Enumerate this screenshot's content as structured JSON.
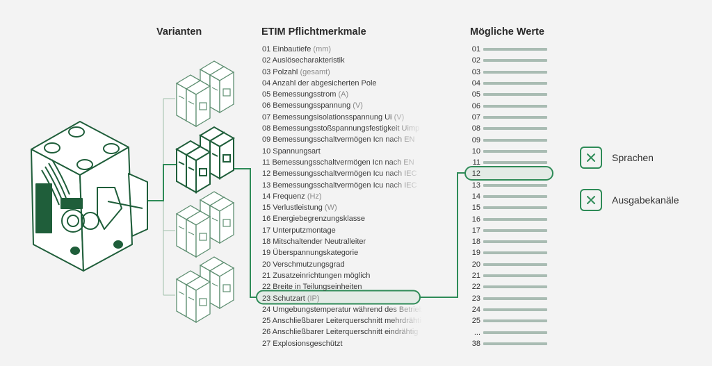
{
  "headings": {
    "variants": "Varianten",
    "etim": "ETIM Pflichtmerkmale",
    "values": "Mögliche Werte"
  },
  "etim_features": [
    {
      "label": "01 Einbautiefe",
      "unit": "(mm)"
    },
    {
      "label": "02 Auslösecharakteristik",
      "unit": ""
    },
    {
      "label": "03 Polzahl",
      "unit": "(gesamt)"
    },
    {
      "label": "04 Anzahl der abgesicherten Pole",
      "unit": ""
    },
    {
      "label": "05 Bemessungsstrom",
      "unit": "(A)"
    },
    {
      "label": "06 Bemessungsspannung",
      "unit": "(V)"
    },
    {
      "label": "07 Bemessungsisolationsspannung Ui",
      "unit": "(V)"
    },
    {
      "label": "08 Bemessungsstoßspannungsfestigkeit Uimp",
      "unit": ""
    },
    {
      "label": "09 Bemessungsschaltvermögen Icn nach EN",
      "unit": ""
    },
    {
      "label": "10 Spannungsart",
      "unit": ""
    },
    {
      "label": "11 Bemessungsschaltvermögen Icn nach EN",
      "unit": ""
    },
    {
      "label": "12 Bemessungsschaltvermögen Icu nach IEC",
      "unit": ""
    },
    {
      "label": "13 Bemessungsschaltvermögen Icu nach IEC",
      "unit": ""
    },
    {
      "label": "14 Frequenz",
      "unit": "(Hz)"
    },
    {
      "label": "15 Verlustleistung",
      "unit": "(W)"
    },
    {
      "label": "16 Energiebegrenzungsklasse",
      "unit": ""
    },
    {
      "label": "17 Unterputzmontage",
      "unit": ""
    },
    {
      "label": "18 Mitschaltender Neutralleiter",
      "unit": ""
    },
    {
      "label": "19 Überspannungskategorie",
      "unit": ""
    },
    {
      "label": "20 Verschmutzungsgrad",
      "unit": ""
    },
    {
      "label": "21 Zusatzeinrichtungen möglich",
      "unit": ""
    },
    {
      "label": "22 Breite in Teilungseinheiten",
      "unit": ""
    },
    {
      "label": "23 Schutzart",
      "unit": "(IP)"
    },
    {
      "label": "24 Umgebungstemperatur während des Betriebs",
      "unit": ""
    },
    {
      "label": "25 Anschließbarer Leiterquerschnitt mehrdrähtig",
      "unit": ""
    },
    {
      "label": "26 Anschließbarer Leiterquerschnitt eindrähtig",
      "unit": ""
    },
    {
      "label": "27 Explosionsgeschützt",
      "unit": ""
    }
  ],
  "values": [
    "01",
    "02",
    "03",
    "04",
    "05",
    "06",
    "07",
    "08",
    "09",
    "10",
    "11",
    "12",
    "13",
    "14",
    "15",
    "16",
    "17",
    "18",
    "19",
    "20",
    "21",
    "22",
    "23",
    "24",
    "25",
    "...",
    "38"
  ],
  "highlight": {
    "feature_index": 22,
    "value_index": 11,
    "variant_index": 1
  },
  "legend": [
    {
      "label": "Sprachen",
      "icon": "x-icon"
    },
    {
      "label": "Ausgabekanäle",
      "icon": "x-icon"
    }
  ],
  "colors": {
    "accent": "#2e8b57",
    "dark_green": "#1f5e3a",
    "bar": "#a9bcb3",
    "highlight_fill": "#e3ebe6"
  }
}
